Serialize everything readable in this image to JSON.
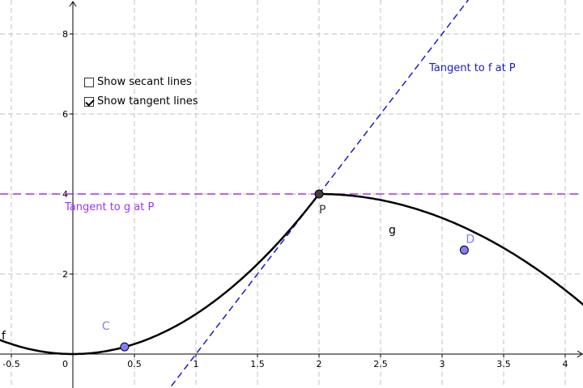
{
  "controls": {
    "secant": {
      "label": "Show secant lines",
      "checked": false
    },
    "tangent": {
      "label": "Show tangent lines",
      "checked": true
    }
  },
  "labels": {
    "f": "f",
    "g": "g",
    "P": "P",
    "C": "C",
    "D": "D",
    "tangent_f": "Tangent to f at P",
    "tangent_g": "Tangent to g at P"
  },
  "axes": {
    "x_ticks": [
      "-0.5",
      "0",
      "0.5",
      "1",
      "1.5",
      "2",
      "2.5",
      "3",
      "3.5",
      "4"
    ],
    "y_ticks": [
      "2",
      "4",
      "6",
      "8"
    ]
  },
  "points": {
    "P": {
      "x": 2,
      "y": 4
    },
    "C": {
      "x": 0.42,
      "y": 0.18
    },
    "D": {
      "x": 3.18,
      "y": 2.6
    }
  },
  "colors": {
    "curve": "#000000",
    "tangent_f": "#1a1acc",
    "tangent_g": "#9933ff",
    "point_blue": "#7f7fff",
    "point_dark": "#404040",
    "grid": "#c0c0c0"
  }
}
